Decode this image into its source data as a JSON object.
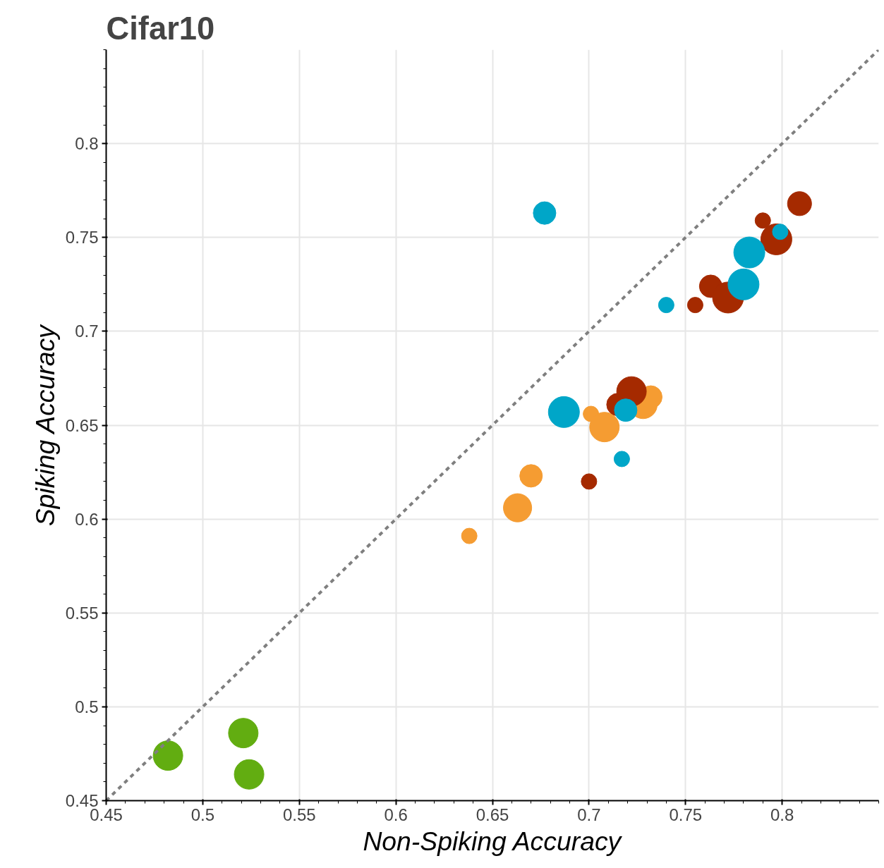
{
  "chart_data": {
    "type": "bubble",
    "title": "Cifar10",
    "xlabel": "Non-Spiking Accuracy",
    "ylabel": "Spiking Accuracy",
    "xlim": [
      0.45,
      0.85
    ],
    "ylim": [
      0.45,
      0.85
    ],
    "xticks": [
      0.45,
      0.5,
      0.55,
      0.6,
      0.65,
      0.7,
      0.75,
      0.8
    ],
    "yticks": [
      0.45,
      0.5,
      0.55,
      0.6,
      0.65,
      0.7,
      0.75,
      0.8
    ],
    "grid": true,
    "marker": "circle",
    "series": [
      {
        "color": "#62ad11",
        "x": [
          0.482,
          0.521,
          0.524
        ],
        "values": [
          0.474,
          0.486,
          0.464
        ],
        "sizes": [
          0.91,
          0.91,
          0.91
        ]
      },
      {
        "color": "#f59c32",
        "x": [
          0.638,
          0.663,
          0.67,
          0.701,
          0.708,
          0.728,
          0.732
        ],
        "values": [
          0.591,
          0.606,
          0.623,
          0.656,
          0.649,
          0.661,
          0.665
        ],
        "sizes": [
          0.25,
          0.83,
          0.53,
          0.25,
          0.91,
          0.83,
          0.53
        ]
      },
      {
        "color": "#a52a00",
        "x": [
          0.7,
          0.715,
          0.722,
          0.755,
          0.763,
          0.772,
          0.79,
          0.797,
          0.809
        ],
        "values": [
          0.62,
          0.661,
          0.668,
          0.714,
          0.724,
          0.718,
          0.759,
          0.749,
          0.768
        ],
        "sizes": [
          0.25,
          0.53,
          0.91,
          0.25,
          0.53,
          1,
          0.25,
          1,
          0.6
        ]
      },
      {
        "color": "#00a6c8",
        "x": [
          0.677,
          0.687,
          0.719,
          0.717,
          0.74,
          0.78,
          0.783,
          0.799
        ],
        "values": [
          0.763,
          0.657,
          0.658,
          0.632,
          0.714,
          0.725,
          0.742,
          0.753
        ],
        "sizes": [
          0.53,
          1,
          0.53,
          0.25,
          0.25,
          1,
          1,
          0.25
        ]
      },
      {
        "type": "line",
        "color": "#7f7f7f",
        "line_style": "dashed",
        "marker": "none",
        "x": [
          0.45,
          0.85
        ],
        "values": [
          0.45,
          0.85
        ]
      }
    ]
  }
}
